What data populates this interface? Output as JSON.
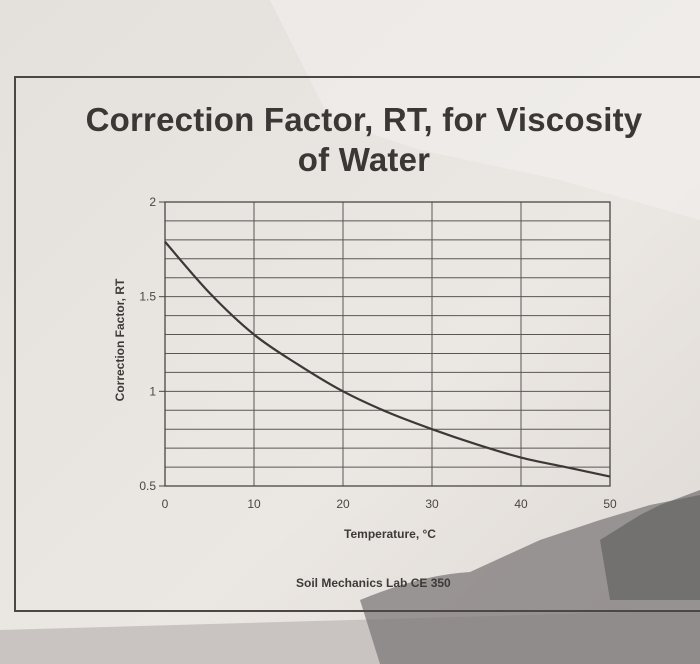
{
  "title_line1": "Correction Factor, RT, for Viscosity",
  "title_line2": "of Water",
  "footer_text": "Soil Mechanics Lab CE 350",
  "colors": {
    "paper": "#e6e2de",
    "ink": "#3a3735",
    "grid": "#5a5653",
    "curve": "#3b3836"
  },
  "chart_data": {
    "type": "line",
    "title": "Correction Factor, RT, for Viscosity of Water",
    "xlabel": "Temperature, °C",
    "ylabel": "Correction Factor, RT",
    "xlim": [
      0,
      50
    ],
    "ylim": [
      0.5,
      2
    ],
    "x_ticks": [
      "0",
      "10",
      "20",
      "30",
      "40",
      "50"
    ],
    "y_ticks": [
      "0.5",
      "1",
      "1.5",
      "2"
    ],
    "grid": true,
    "series": [
      {
        "x": [
          0,
          5,
          10,
          15,
          20,
          25,
          30,
          35,
          40,
          45,
          50
        ],
        "values": [
          1.79,
          1.52,
          1.3,
          1.14,
          1.0,
          0.89,
          0.8,
          0.72,
          0.65,
          0.6,
          0.55
        ]
      }
    ]
  }
}
